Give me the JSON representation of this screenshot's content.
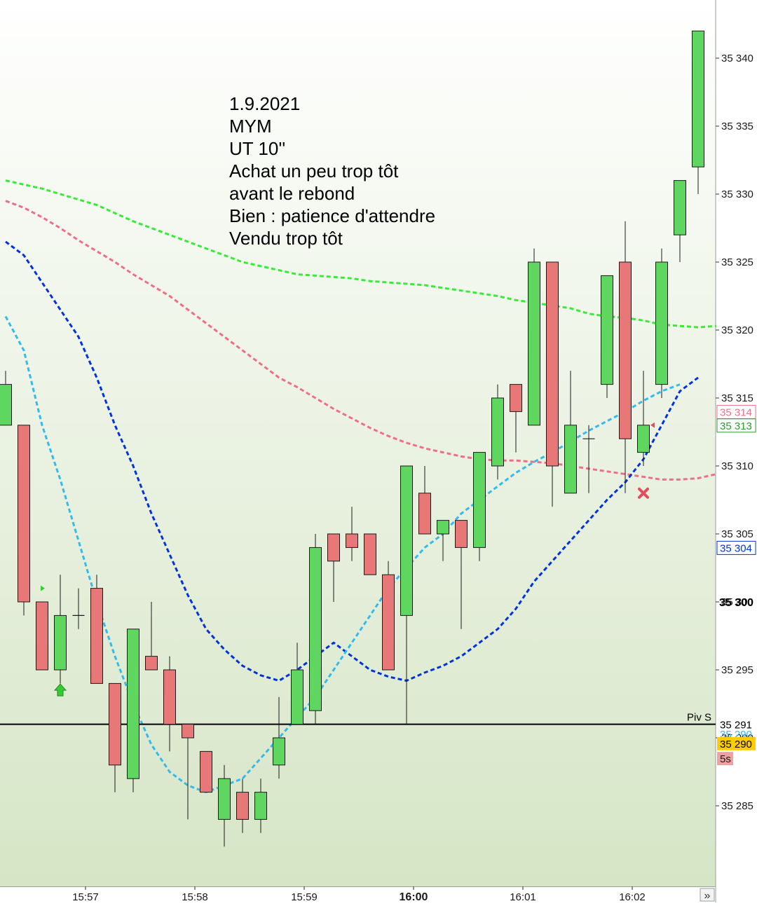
{
  "annotation": {
    "lines": [
      "1.9.2021",
      "MYM",
      "UT 10''",
      "Achat un peu trop tôt",
      "avant le rebond",
      "Bien : patience d'attendre",
      "Vendu trop tôt"
    ]
  },
  "scroll_button_label": "»",
  "colors": {
    "bg_top": "#ffffff",
    "bg_bottom": "#d6e5c6",
    "bull": "#5fd65f",
    "bear": "#e87878",
    "ma_green": "#33ee33",
    "ma_pink": "#f06f86",
    "ma_blue": "#0033dd",
    "ma_cyan": "#33bbee",
    "pivot": "#000000"
  },
  "chart_data": {
    "type": "candlestick",
    "title": "",
    "ylim": [
      35280.5,
      35345.5
    ],
    "y_ticks": [
      35285,
      35290,
      35295,
      35300,
      35305,
      35310,
      35315,
      35320,
      35325,
      35330,
      35335,
      35340
    ],
    "y_tick_labels": [
      "35 285",
      "35 290",
      "35 295",
      "35 300",
      "35 305",
      "35 310",
      "35 315",
      "35 320",
      "35 325",
      "35 330",
      "35 335",
      "35 340"
    ],
    "x_ticks": [
      {
        "label": "15:57",
        "bar": 4
      },
      {
        "label": "15:58",
        "bar": 10
      },
      {
        "label": "15:59",
        "bar": 16
      },
      {
        "label": "16:00",
        "bar": 22,
        "bold": true
      },
      {
        "label": "16:01",
        "bar": 28
      },
      {
        "label": "16:02",
        "bar": 34
      }
    ],
    "candles": [
      {
        "o": 35313,
        "h": 35317,
        "l": 35313,
        "c": 35316
      },
      {
        "o": 35313,
        "h": 35313,
        "l": 35299,
        "c": 35300
      },
      {
        "o": 35300,
        "h": 35300,
        "l": 35295,
        "c": 35295
      },
      {
        "o": 35295,
        "h": 35302,
        "l": 35294,
        "c": 35299
      },
      {
        "o": 35299,
        "h": 35301,
        "l": 35298,
        "c": 35299
      },
      {
        "o": 35301,
        "h": 35302,
        "l": 35294,
        "c": 35294
      },
      {
        "o": 35294,
        "h": 35294,
        "l": 35286,
        "c": 35288
      },
      {
        "o": 35287,
        "h": 35298,
        "l": 35286,
        "c": 35298
      },
      {
        "o": 35296,
        "h": 35300,
        "l": 35295,
        "c": 35295
      },
      {
        "o": 35295,
        "h": 35296,
        "l": 35289,
        "c": 35291
      },
      {
        "o": 35291,
        "h": 35291,
        "l": 35284,
        "c": 35290
      },
      {
        "o": 35289,
        "h": 35289,
        "l": 35286,
        "c": 35286
      },
      {
        "o": 35284,
        "h": 35288,
        "l": 35282,
        "c": 35287
      },
      {
        "o": 35286,
        "h": 35287,
        "l": 35283,
        "c": 35284
      },
      {
        "o": 35284,
        "h": 35287,
        "l": 35283,
        "c": 35286
      },
      {
        "o": 35288,
        "h": 35293,
        "l": 35287,
        "c": 35290
      },
      {
        "o": 35291,
        "h": 35297,
        "l": 35291,
        "c": 35295
      },
      {
        "o": 35292,
        "h": 35305,
        "l": 35291,
        "c": 35304
      },
      {
        "o": 35305,
        "h": 35305,
        "l": 35300,
        "c": 35303
      },
      {
        "o": 35305,
        "h": 35307,
        "l": 35303,
        "c": 35304
      },
      {
        "o": 35305,
        "h": 35305,
        "l": 35302,
        "c": 35302
      },
      {
        "o": 35302,
        "h": 35303,
        "l": 35295,
        "c": 35295
      },
      {
        "o": 35299,
        "h": 35310,
        "l": 35291,
        "c": 35310
      },
      {
        "o": 35308,
        "h": 35310,
        "l": 35305,
        "c": 35305
      },
      {
        "o": 35305,
        "h": 35306,
        "l": 35303,
        "c": 35306
      },
      {
        "o": 35306,
        "h": 35306,
        "l": 35298,
        "c": 35304
      },
      {
        "o": 35304,
        "h": 35311,
        "l": 35303,
        "c": 35311
      },
      {
        "o": 35310,
        "h": 35316,
        "l": 35309,
        "c": 35315
      },
      {
        "o": 35316,
        "h": 35316,
        "l": 35311,
        "c": 35314
      },
      {
        "o": 35313,
        "h": 35326,
        "l": 35313,
        "c": 35325
      },
      {
        "o": 35325,
        "h": 35325,
        "l": 35307,
        "c": 35310
      },
      {
        "o": 35308,
        "h": 35317,
        "l": 35308,
        "c": 35313
      },
      {
        "o": 35312,
        "h": 35313,
        "l": 35308,
        "c": 35312
      },
      {
        "o": 35316,
        "h": 35324,
        "l": 35315,
        "c": 35324
      },
      {
        "o": 35325,
        "h": 35328,
        "l": 35308,
        "c": 35312
      },
      {
        "o": 35311,
        "h": 35317,
        "l": 35310,
        "c": 35313
      },
      {
        "o": 35316,
        "h": 35326,
        "l": 35315,
        "c": 35325
      },
      {
        "o": 35327,
        "h": 35331,
        "l": 35325,
        "c": 35331
      },
      {
        "o": 35332,
        "h": 35342,
        "l": 35330,
        "c": 35342
      }
    ],
    "series": [
      {
        "name": "",
        "color": "#33ee33",
        "values": [
          35331,
          35330.7,
          35330.4,
          35330,
          35329.6,
          35329.2,
          35328.6,
          35328,
          35327.5,
          35327,
          35326.5,
          35326,
          35325.5,
          35325,
          35324.7,
          35324.4,
          35324.1,
          35324,
          35323.9,
          35323.8,
          35323.6,
          35323.5,
          35323.4,
          35323.3,
          35323.1,
          35322.9,
          35322.7,
          35322.5,
          35322.2,
          35322,
          35321.8,
          35321.6,
          35321.2,
          35321,
          35320.9,
          35320.7,
          35320.4,
          35320.3,
          35320.2,
          35320.3
        ]
      },
      {
        "name": "",
        "color": "#f06f86",
        "values": [
          35329.5,
          35329,
          35328.3,
          35327.5,
          35326.6,
          35325.8,
          35325,
          35324.1,
          35323.3,
          35322.5,
          35321.5,
          35320.5,
          35319.5,
          35318.5,
          35317.5,
          35316.5,
          35315.8,
          35315,
          35314.2,
          35313.5,
          35312.8,
          35312.2,
          35311.7,
          35311.3,
          35311,
          35310.7,
          35310.5,
          35310.4,
          35310.4,
          35310.3,
          35310.2,
          35310,
          35309.8,
          35309.6,
          35309.4,
          35309.2,
          35309,
          35309,
          35309.1,
          35309.4
        ]
      },
      {
        "name": "",
        "color": "#0033dd",
        "values": [
          35326.5,
          35325.5,
          35323.5,
          35321.5,
          35319.5,
          35316.5,
          35313,
          35310,
          35306.5,
          35303.5,
          35300.5,
          35298,
          35296.5,
          35295.3,
          35294.6,
          35294.2,
          35295,
          35296,
          35297,
          35296,
          35295,
          35294.5,
          35294.2,
          35294.8,
          35295.3,
          35296,
          35297,
          35298,
          35299.5,
          35301.5,
          35303,
          35304.5,
          35306,
          35307.5,
          35308.8,
          35310.5,
          35313,
          35315.5,
          35316.5
        ]
      },
      {
        "name": "",
        "color": "#33bbee",
        "values": [
          35321,
          35318.5,
          35313,
          35309,
          35304.5,
          35300,
          35296,
          35292.5,
          35289.5,
          35287.5,
          35286.5,
          35286,
          35286.5,
          35287,
          35288.5,
          35290,
          35291.5,
          35293,
          35295,
          35297,
          35299,
          35301,
          35302.5,
          35304,
          35305,
          35306.5,
          35307.5,
          35308.5,
          35309.5,
          35310.3,
          35311,
          35311.8,
          35312.6,
          35313.3,
          35314,
          35314.8,
          35315.5,
          35316
        ]
      }
    ],
    "pivot": {
      "label": "Piv S",
      "value": 35291
    },
    "price_tags": [
      {
        "label": "35 314",
        "value": 35314,
        "color": "#f06f86"
      },
      {
        "label": "35 313",
        "value": 35313,
        "color": "#2e9b2e"
      },
      {
        "label": "35 304",
        "value": 35304,
        "color": "#0033dd"
      },
      {
        "label": "35 291",
        "value": 35291,
        "color": "#000000"
      },
      {
        "label": "35 290",
        "value": 35290.3,
        "color": "#33bbee"
      },
      {
        "label": "35 290",
        "value": 35289.6,
        "color": "#000000",
        "highlight": true
      }
    ],
    "timer_label": "5s",
    "last_price_label": "35 300",
    "last_price_value": 35300,
    "markers": [
      {
        "type": "buy-arrow",
        "bar": 3,
        "value": 35293.5
      },
      {
        "type": "entry-tick",
        "bar": 2,
        "value": 35301
      },
      {
        "type": "exit-cross",
        "bar": 35,
        "value": 35308
      },
      {
        "type": "exit-tick",
        "bar": 35,
        "value": 35313
      }
    ]
  }
}
